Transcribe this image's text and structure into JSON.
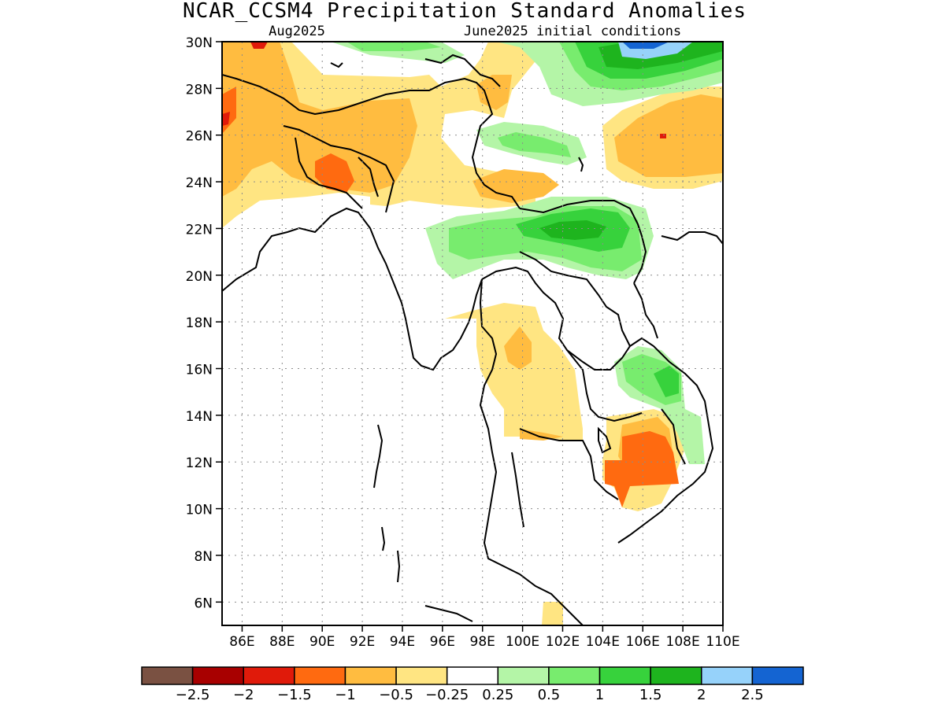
{
  "title": "NCAR_CCSM4 Precipitation Standard Anomalies",
  "subtitle_left": "Aug2025",
  "subtitle_right": "June2025 initial conditions",
  "map": {
    "lon_range": [
      85,
      110
    ],
    "lat_range": [
      5,
      30
    ],
    "lat_ticks": [
      "30N",
      "28N",
      "26N",
      "24N",
      "22N",
      "20N",
      "18N",
      "16N",
      "14N",
      "12N",
      "10N",
      "8N",
      "6N"
    ],
    "lon_ticks": [
      "86E",
      "88E",
      "90E",
      "92E",
      "94E",
      "96E",
      "98E",
      "100E",
      "102E",
      "104E",
      "106E",
      "108E",
      "110E"
    ],
    "grid": "dotted"
  },
  "legend": {
    "labels": [
      "-2.5",
      "-2",
      "-1.5",
      "-1",
      "-0.5",
      "-0.25",
      "0.25",
      "0.5",
      "1",
      "1.5",
      "2",
      "2.5"
    ],
    "colors": [
      "#7a5142",
      "#a80000",
      "#e01a0a",
      "#ff6a10",
      "#ffbc40",
      "#ffe582",
      "#ffffff",
      "#b4f5a7",
      "#78ec6e",
      "#37d23c",
      "#1eb41e",
      "#96d2fa",
      "#1464d2"
    ]
  }
}
